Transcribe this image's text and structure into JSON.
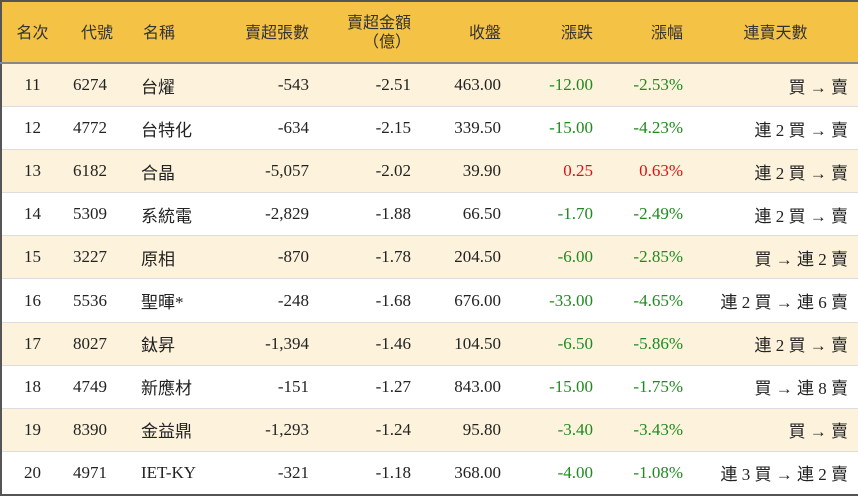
{
  "table": {
    "header": [
      "名次",
      "代號",
      "名稱",
      "賣超張數",
      "賣超金額\n（億）",
      "收盤",
      "漲跌",
      "漲幅",
      "連賣天數"
    ],
    "rows": [
      [
        "11",
        "6274",
        "台燿",
        "-543",
        "-2.51",
        "463.00",
        "-12.00",
        "-2.53%",
        "買 → 賣"
      ],
      [
        "12",
        "4772",
        "台特化",
        "-634",
        "-2.15",
        "339.50",
        "-15.00",
        "-4.23%",
        "連 2 買 → 賣"
      ],
      [
        "13",
        "6182",
        "合晶",
        "-5,057",
        "-2.02",
        "39.90",
        "0.25",
        "0.63%",
        "連 2 買 → 賣"
      ],
      [
        "14",
        "5309",
        "系統電",
        "-2,829",
        "-1.88",
        "66.50",
        "-1.70",
        "-2.49%",
        "連 2 買 → 賣"
      ],
      [
        "15",
        "3227",
        "原相",
        "-870",
        "-1.78",
        "204.50",
        "-6.00",
        "-2.85%",
        "買 → 連 2 賣"
      ],
      [
        "16",
        "5536",
        "聖暉*",
        "-248",
        "-1.68",
        "676.00",
        "-33.00",
        "-4.65%",
        "連 2 買 → 連 6 賣"
      ],
      [
        "17",
        "8027",
        "鈦昇",
        "-1,394",
        "-1.46",
        "104.50",
        "-6.50",
        "-5.86%",
        "連 2 買 → 賣"
      ],
      [
        "18",
        "4749",
        "新應材",
        "-151",
        "-1.27",
        "843.00",
        "-15.00",
        "-1.75%",
        "買 → 連 8 賣"
      ],
      [
        "19",
        "8390",
        "金益鼎",
        "-1,293",
        "-1.24",
        "95.80",
        "-3.40",
        "-3.43%",
        "買 → 賣"
      ],
      [
        "20",
        "4971",
        "IET-KY",
        "-321",
        "-1.18",
        "368.00",
        "-4.00",
        "-1.08%",
        "連 3 買 → 連 2 賣"
      ]
    ]
  }
}
